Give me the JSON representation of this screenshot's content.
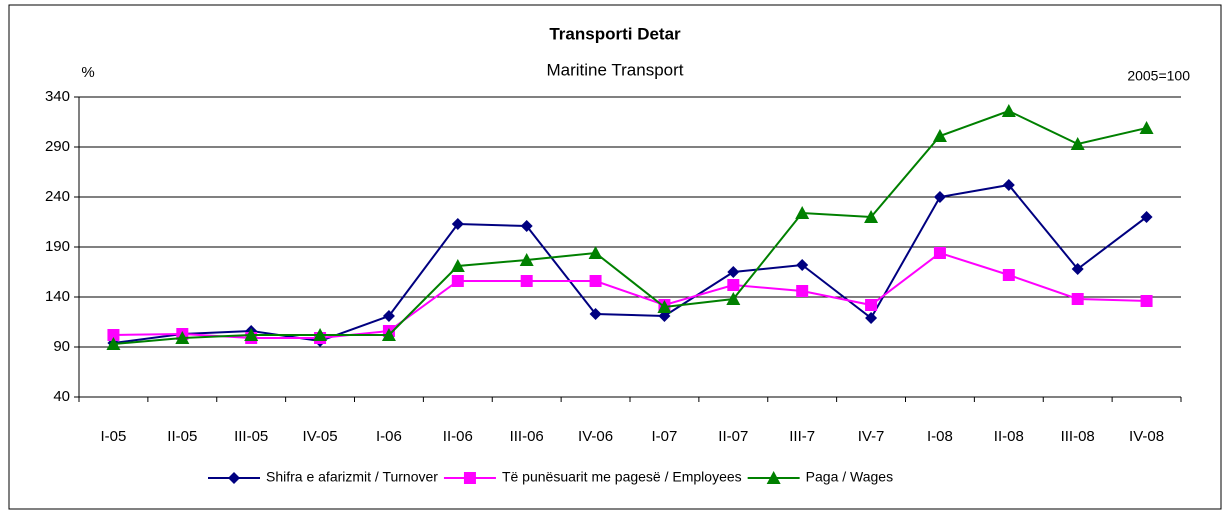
{
  "chart_data": {
    "type": "line",
    "title": "Transporti Detar",
    "subtitle": "Maritine Transport",
    "y_label": "%",
    "annotation": "2005=100",
    "categories": [
      "I-05",
      "II-05",
      "III-05",
      "IV-05",
      "I-06",
      "II-06",
      "III-06",
      "IV-06",
      "I-07",
      "II-07",
      "III-7",
      "IV-7",
      "I-08",
      "II-08",
      "III-08",
      "IV-08"
    ],
    "series": [
      {
        "name": "Shifra e afarizmit / Turnover",
        "color": "#000080",
        "marker": "diamond",
        "values": [
          94,
          103,
          106,
          96,
          121,
          213,
          211,
          123,
          121,
          165,
          172,
          119,
          240,
          252,
          168,
          220
        ]
      },
      {
        "name": "Të punësuarit me pagesë / Employees",
        "color": "#ff00ff",
        "marker": "square",
        "values": [
          102,
          103,
          99,
          99,
          106,
          156,
          156,
          156,
          132,
          152,
          146,
          132,
          184,
          162,
          138,
          136
        ]
      },
      {
        "name": "Paga / Wages",
        "color": "#008000",
        "marker": "triangle",
        "values": [
          93,
          99,
          102,
          102,
          102,
          171,
          177,
          184,
          130,
          138,
          224,
          220,
          301,
          326,
          293,
          309
        ]
      }
    ],
    "ylim": [
      40,
      340
    ],
    "yticks": [
      40,
      90,
      140,
      190,
      240,
      290,
      340
    ],
    "grid": true,
    "legend": "bottom"
  }
}
